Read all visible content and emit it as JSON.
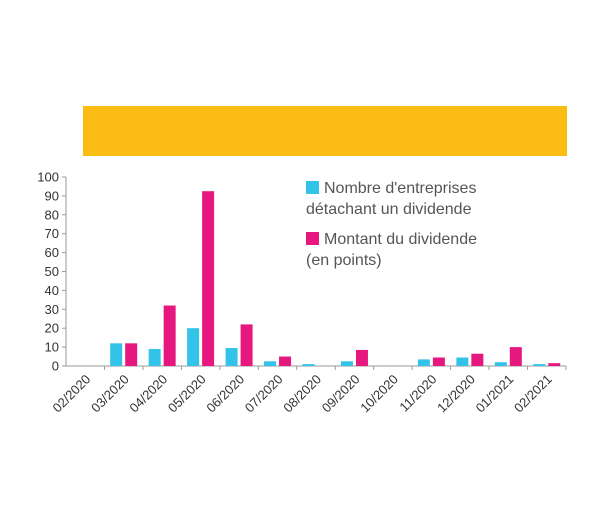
{
  "colors": {
    "banner": "#FBBD13",
    "series_cyan": "#33C3E8",
    "series_magenta": "#E6187F",
    "axis": "#9a9a9a",
    "text": "#333333"
  },
  "chart_data": {
    "type": "bar",
    "categories": [
      "02/2020",
      "03/2020",
      "04/2020",
      "05/2020",
      "06/2020",
      "07/2020",
      "08/2020",
      "09/2020",
      "10/2020",
      "11/2020",
      "12/2020",
      "01/2021",
      "02/2021"
    ],
    "series": [
      {
        "name": "Nombre d'entreprises détachant un dividende",
        "values": [
          0,
          12,
          9,
          20,
          9.5,
          2.5,
          1,
          2.5,
          0,
          3.5,
          4.5,
          2,
          1
        ]
      },
      {
        "name": "Montant du dividende (en points)",
        "values": [
          0,
          12,
          32,
          92.5,
          22,
          5,
          0,
          8.5,
          0,
          4.5,
          6.5,
          10,
          1.5
        ]
      }
    ],
    "ylim": [
      0,
      100
    ],
    "yticks": [
      "0",
      "10",
      "20",
      "30",
      "40",
      "50",
      "60",
      "70",
      "80",
      "90",
      "100"
    ],
    "legend": {
      "placement": "top-right",
      "entries": [
        {
          "line1": "Nombre d'entreprises",
          "line2": "détachant un dividende"
        },
        {
          "line1": "Montant du dividende",
          "line2": "(en points)"
        }
      ]
    },
    "grid": false
  }
}
